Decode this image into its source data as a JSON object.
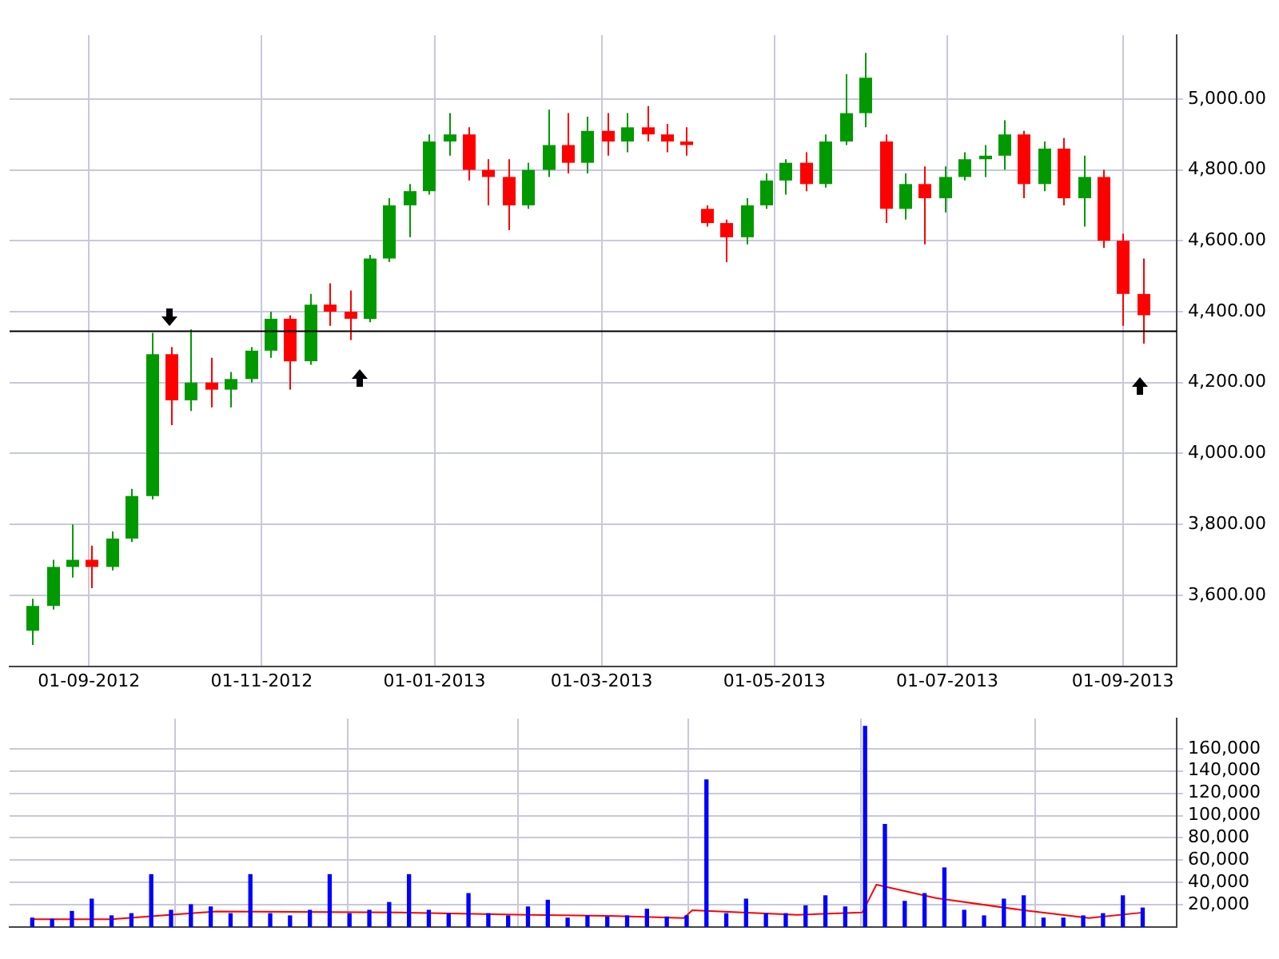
{
  "chart_data": [
    {
      "type": "candlestick",
      "x": [
        "2012-08-12",
        "2012-08-19",
        "2012-08-26",
        "2012-09-02",
        "2012-09-09",
        "2012-09-16",
        "2012-09-23",
        "2012-09-30",
        "2012-10-07",
        "2012-10-14",
        "2012-10-21",
        "2012-10-28",
        "2012-11-04",
        "2012-11-11",
        "2012-11-18",
        "2012-11-25",
        "2012-12-02",
        "2012-12-09",
        "2012-12-16",
        "2012-12-23",
        "2012-12-30",
        "2013-01-06",
        "2013-01-13",
        "2013-01-20",
        "2013-01-27",
        "2013-02-03",
        "2013-02-10",
        "2013-02-17",
        "2013-02-24",
        "2013-03-03",
        "2013-03-10",
        "2013-03-17",
        "2013-03-24",
        "2013-03-31",
        "2013-04-07",
        "2013-04-14",
        "2013-04-21",
        "2013-04-28",
        "2013-05-05",
        "2013-05-12",
        "2013-05-19",
        "2013-05-26",
        "2013-06-02",
        "2013-06-09",
        "2013-06-16",
        "2013-06-23",
        "2013-06-30",
        "2013-07-07",
        "2013-07-14",
        "2013-07-21",
        "2013-07-28",
        "2013-08-04",
        "2013-08-11",
        "2013-08-18",
        "2013-08-25",
        "2013-09-01",
        "2013-09-08"
      ],
      "ohlc": [
        [
          3500,
          3590,
          3460,
          3570
        ],
        [
          3570,
          3700,
          3560,
          3680
        ],
        [
          3680,
          3800,
          3650,
          3700
        ],
        [
          3700,
          3740,
          3620,
          3680
        ],
        [
          3680,
          3780,
          3670,
          3760
        ],
        [
          3760,
          3900,
          3750,
          3880
        ],
        [
          3880,
          4340,
          3870,
          4280
        ],
        [
          4280,
          4300,
          4080,
          4150
        ],
        [
          4150,
          4350,
          4120,
          4200
        ],
        [
          4200,
          4270,
          4130,
          4180
        ],
        [
          4180,
          4230,
          4130,
          4210
        ],
        [
          4210,
          4300,
          4200,
          4290
        ],
        [
          4290,
          4400,
          4270,
          4380
        ],
        [
          4380,
          4390,
          4180,
          4260
        ],
        [
          4260,
          4450,
          4250,
          4420
        ],
        [
          4420,
          4480,
          4360,
          4400
        ],
        [
          4400,
          4460,
          4320,
          4380
        ],
        [
          4380,
          4560,
          4370,
          4550
        ],
        [
          4550,
          4720,
          4540,
          4700
        ],
        [
          4700,
          4760,
          4610,
          4740
        ],
        [
          4740,
          4900,
          4730,
          4880
        ],
        [
          4880,
          4960,
          4840,
          4900
        ],
        [
          4900,
          4920,
          4770,
          4800
        ],
        [
          4800,
          4830,
          4700,
          4780
        ],
        [
          4780,
          4830,
          4630,
          4700
        ],
        [
          4700,
          4820,
          4690,
          4800
        ],
        [
          4800,
          4970,
          4780,
          4870
        ],
        [
          4870,
          4960,
          4790,
          4820
        ],
        [
          4820,
          4950,
          4790,
          4910
        ],
        [
          4910,
          4960,
          4840,
          4880
        ],
        [
          4880,
          4960,
          4850,
          4920
        ],
        [
          4920,
          4980,
          4880,
          4900
        ],
        [
          4900,
          4930,
          4850,
          4880
        ],
        [
          4880,
          4920,
          4840,
          4870
        ],
        [
          4690,
          4700,
          4640,
          4650
        ],
        [
          4650,
          4660,
          4540,
          4610
        ],
        [
          4610,
          4720,
          4590,
          4700
        ],
        [
          4700,
          4790,
          4690,
          4770
        ],
        [
          4770,
          4830,
          4730,
          4820
        ],
        [
          4820,
          4850,
          4740,
          4760
        ],
        [
          4760,
          4900,
          4750,
          4880
        ],
        [
          4880,
          5070,
          4870,
          4960
        ],
        [
          4960,
          5130,
          4920,
          5060
        ],
        [
          4880,
          4900,
          4650,
          4690
        ],
        [
          4690,
          4790,
          4660,
          4760
        ],
        [
          4760,
          4810,
          4590,
          4720
        ],
        [
          4720,
          4810,
          4680,
          4780
        ],
        [
          4780,
          4850,
          4770,
          4830
        ],
        [
          4830,
          4870,
          4780,
          4840
        ],
        [
          4840,
          4940,
          4800,
          4900
        ],
        [
          4900,
          4910,
          4720,
          4760
        ],
        [
          4760,
          4880,
          4740,
          4860
        ],
        [
          4860,
          4890,
          4700,
          4720
        ],
        [
          4720,
          4840,
          4640,
          4780
        ],
        [
          4780,
          4800,
          4580,
          4600
        ],
        [
          4600,
          4620,
          4360,
          4450
        ],
        [
          4450,
          4550,
          4310,
          4390
        ]
      ],
      "colors": [
        "#009900",
        "#009900",
        "#009900",
        "#ff0000",
        "#009900",
        "#009900",
        "#009900",
        "#ff0000",
        "#009900",
        "#ff0000",
        "#009900",
        "#009900",
        "#009900",
        "#ff0000",
        "#009900",
        "#ff0000",
        "#ff0000",
        "#009900",
        "#009900",
        "#009900",
        "#009900",
        "#009900",
        "#ff0000",
        "#ff0000",
        "#ff0000",
        "#009900",
        "#009900",
        "#ff0000",
        "#009900",
        "#ff0000",
        "#009900",
        "#ff0000",
        "#ff0000",
        "#ff0000",
        "#ff0000",
        "#ff0000",
        "#009900",
        "#009900",
        "#009900",
        "#ff0000",
        "#009900",
        "#009900",
        "#009900",
        "#ff0000",
        "#009900",
        "#ff0000",
        "#009900",
        "#009900",
        "#009900",
        "#009900",
        "#ff0000",
        "#009900",
        "#ff0000",
        "#009900",
        "#ff0000",
        "#ff0000",
        "#ff0000"
      ],
      "xlim": [
        "2012-08-04",
        "2013-09-20"
      ],
      "xticks": [
        {
          "value": "2012-09-01",
          "label": "01-09-2012"
        },
        {
          "value": "2012-11-01",
          "label": "01-11-2012"
        },
        {
          "value": "2013-01-01",
          "label": "01-01-2013"
        },
        {
          "value": "2013-03-01",
          "label": "01-03-2013"
        },
        {
          "value": "2013-05-01",
          "label": "01-05-2013"
        },
        {
          "value": "2013-07-01",
          "label": "01-07-2013"
        },
        {
          "value": "2013-09-01",
          "label": "01-09-2013"
        }
      ],
      "ylim": [
        3400,
        5180
      ],
      "yticks": [
        {
          "value": 3600,
          "label": "3,600.00"
        },
        {
          "value": 3800,
          "label": "3,800.00"
        },
        {
          "value": 4000,
          "label": "4,000.00"
        },
        {
          "value": 4200,
          "label": "4,200.00"
        },
        {
          "value": 4400,
          "label": "4,400.00"
        },
        {
          "value": 4600,
          "label": "4,600.00"
        },
        {
          "value": 4800,
          "label": "4,800.00"
        },
        {
          "value": 5000,
          "label": "5,000.00"
        }
      ],
      "ref_lines": [
        {
          "axis": "y",
          "value": 4345,
          "color": "#000000"
        }
      ],
      "grid": true,
      "legend": false
    },
    {
      "type": "bar",
      "series": [
        {
          "type": "bar",
          "color": "#0000ff",
          "x": [
            "2012-08-12",
            "2012-08-19",
            "2012-08-26",
            "2012-09-02",
            "2012-09-09",
            "2012-09-16",
            "2012-09-23",
            "2012-09-30",
            "2012-10-07",
            "2012-10-14",
            "2012-10-21",
            "2012-10-28",
            "2012-11-04",
            "2012-11-11",
            "2012-11-18",
            "2012-11-25",
            "2012-12-02",
            "2012-12-09",
            "2012-12-16",
            "2012-12-23",
            "2012-12-30",
            "2013-01-06",
            "2013-01-13",
            "2013-01-20",
            "2013-01-27",
            "2013-02-03",
            "2013-02-10",
            "2013-02-17",
            "2013-02-24",
            "2013-03-03",
            "2013-03-10",
            "2013-03-17",
            "2013-03-24",
            "2013-03-31",
            "2013-04-07",
            "2013-04-14",
            "2013-04-21",
            "2013-04-28",
            "2013-05-05",
            "2013-05-12",
            "2013-05-19",
            "2013-05-26",
            "2013-06-02",
            "2013-06-09",
            "2013-06-16",
            "2013-06-23",
            "2013-06-30",
            "2013-07-07",
            "2013-07-14",
            "2013-07-21",
            "2013-07-28",
            "2013-08-04",
            "2013-08-11",
            "2013-08-18",
            "2013-08-25",
            "2013-09-01",
            "2013-09-08"
          ],
          "values": [
            8000,
            7000,
            14000,
            25000,
            10000,
            12000,
            47000,
            15000,
            20000,
            18000,
            12000,
            47000,
            12000,
            10000,
            15000,
            47000,
            12000,
            15000,
            22000,
            47000,
            15000,
            12000,
            30000,
            12000,
            10000,
            18000,
            24000,
            8000,
            10000,
            9000,
            10000,
            16000,
            9000,
            10000,
            132000,
            12000,
            25000,
            12000,
            12000,
            19000,
            28000,
            18000,
            180000,
            92000,
            23000,
            30000,
            53000,
            15000,
            10000,
            25000,
            28000,
            8000,
            8000,
            10000,
            12000,
            28000,
            17000
          ]
        },
        {
          "type": "line",
          "color": "#ff0000",
          "x": [
            "2012-08-12",
            "2012-09-09",
            "2012-10-16",
            "2012-12-20",
            "2013-02-03",
            "2013-03-03",
            "2013-03-30",
            "2013-04-02",
            "2013-05-09",
            "2013-06-01",
            "2013-06-06",
            "2013-06-27",
            "2013-07-28",
            "2013-08-20",
            "2013-09-08"
          ],
          "values": [
            7000,
            7000,
            14000,
            13000,
            11000,
            10000,
            8000,
            15000,
            11000,
            13000,
            38000,
            26000,
            15000,
            8000,
            13000
          ]
        }
      ],
      "xlim": [
        "2012-08-04",
        "2013-09-20"
      ],
      "xticks": [
        {
          "value": "2012-09-01",
          "label": null
        },
        {
          "value": "2012-11-01",
          "label": null
        },
        {
          "value": "2013-01-01",
          "label": null
        },
        {
          "value": "2013-03-01",
          "label": null
        },
        {
          "value": "2013-05-01",
          "label": null
        },
        {
          "value": "2013-07-01",
          "label": null
        },
        {
          "value": "2013-09-01",
          "label": null
        }
      ],
      "tick_labels": "y",
      "ylim": [
        0,
        187000
      ],
      "yticks": [
        {
          "value": 20000,
          "label": "20,000"
        },
        {
          "value": 40000,
          "label": "40,000"
        },
        {
          "value": 60000,
          "label": "60,000"
        },
        {
          "value": 80000,
          "label": "80,000"
        },
        {
          "value": 100000,
          "label": "100,000"
        },
        {
          "value": 120000,
          "label": "120,000"
        },
        {
          "value": 140000,
          "label": "140,000"
        },
        {
          "value": 160000,
          "label": "160,000"
        }
      ],
      "grid": true,
      "legend": false
    }
  ]
}
